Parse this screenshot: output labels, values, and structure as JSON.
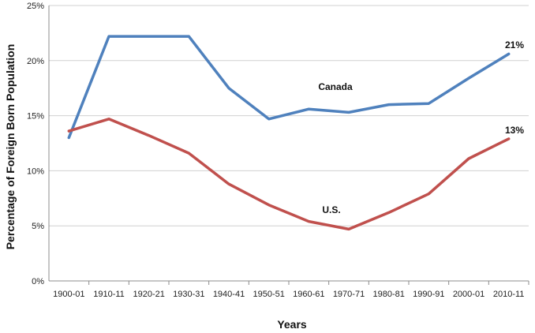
{
  "chart_data": {
    "type": "line",
    "title": "",
    "xlabel": "Years",
    "ylabel": "Percentage of Foreign Born Population",
    "categories": [
      "1900-01",
      "1910-11",
      "1920-21",
      "1930-31",
      "1940-41",
      "1950-51",
      "1960-61",
      "1970-71",
      "1980-81",
      "1990-91",
      "2000-01",
      "2010-11"
    ],
    "y_ticks": [
      0,
      5,
      10,
      15,
      20,
      25
    ],
    "y_tick_labels": [
      "0%",
      "5%",
      "10%",
      "15%",
      "20%",
      "25%"
    ],
    "ylim": [
      0,
      25
    ],
    "grid": true,
    "legend": "none",
    "series": [
      {
        "name": "Canada",
        "color": "#4F81BD",
        "values": [
          13.0,
          22.2,
          22.2,
          22.2,
          17.5,
          14.7,
          15.6,
          15.3,
          16.0,
          16.1,
          18.4,
          20.6
        ],
        "end_label": "21%"
      },
      {
        "name": "U.S.",
        "color": "#C0504D",
        "values": [
          13.6,
          14.7,
          13.2,
          11.6,
          8.8,
          6.9,
          5.4,
          4.7,
          6.2,
          7.9,
          11.1,
          12.9
        ],
        "end_label": "13%"
      }
    ]
  }
}
